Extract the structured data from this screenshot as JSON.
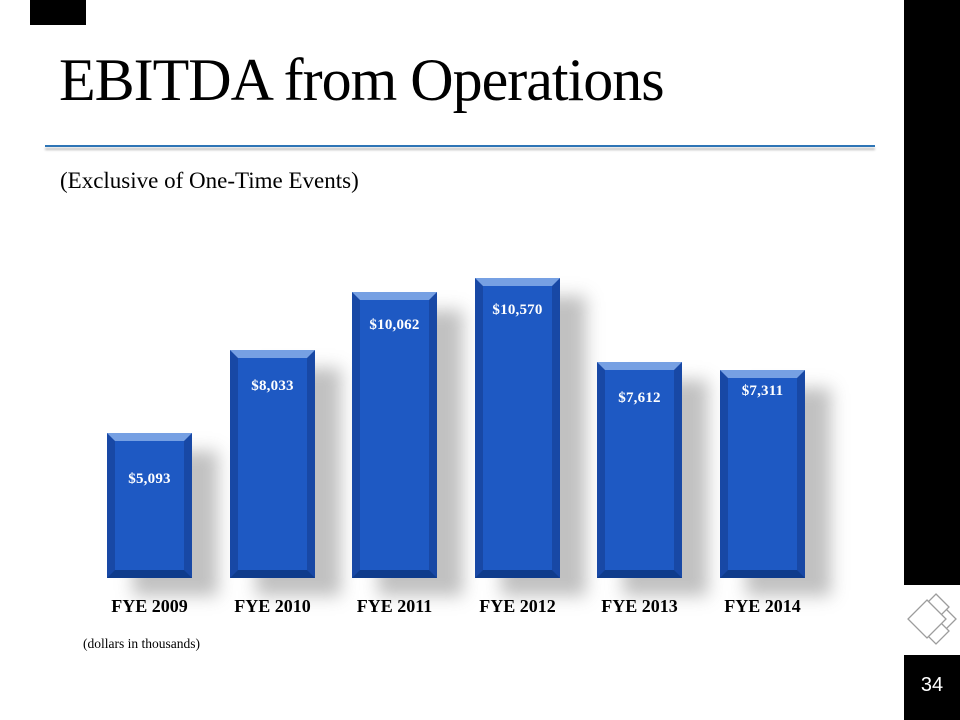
{
  "slide": {
    "title": "EBITDA from Operations",
    "subtitle": "(Exclusive of One-Time Events)",
    "footnote": "(dollars in thousands)"
  },
  "sidebar": {
    "page_number": "34",
    "logo_icon": "diamond-quadrants-logo"
  },
  "colors": {
    "bar_face": "#1E59C3",
    "bar_bevel_top": "#76A0E3",
    "bar_bevel_side": "#1848A5",
    "bar_bevel_bottom": "#0F3C8C",
    "title_rule": "#2E75B6",
    "sidebar_bg": "#000000",
    "value_label": "#FFFFFF",
    "logo_stroke": "#9D9D9D"
  },
  "chart_data": {
    "type": "bar",
    "title": "EBITDA from Operations (Exclusive of One-Time Events)",
    "categories": [
      "FYE 2009",
      "FYE 2010",
      "FYE 2011",
      "FYE 2012",
      "FYE 2013",
      "FYE 2014"
    ],
    "values": [
      5093,
      8033,
      10062,
      10570,
      7612,
      7311
    ],
    "value_labels": [
      "$5,093",
      "$8,033",
      "$10,062",
      "$10,570",
      "$7,612",
      "$7,311"
    ],
    "units": "dollars in thousands",
    "xlabel": "",
    "ylabel": "",
    "ylim": [
      0,
      11000
    ],
    "grid": false,
    "legend": null,
    "bar_style": "3d-beveled-blue-with-drop-shadow"
  }
}
